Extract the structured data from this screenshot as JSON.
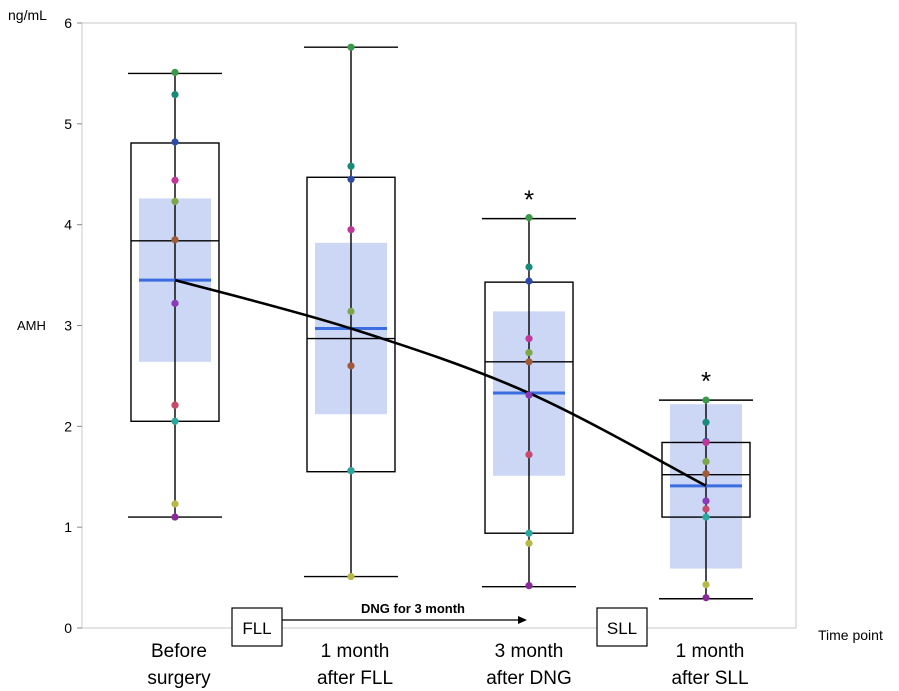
{
  "chart_data": {
    "type": "box",
    "unit_label": "ng/mL",
    "ylabel": "AMH",
    "xlabel": "Time point",
    "ylim": [
      0,
      6
    ],
    "y_ticks": [
      0,
      1,
      2,
      3,
      4,
      5,
      6
    ],
    "categories": [
      {
        "line1": "Before",
        "line2": "surgery"
      },
      {
        "line1": "1 month",
        "line2": "after FLL"
      },
      {
        "line1": "3 month",
        "line2": "after DNG"
      },
      {
        "line1": "1 month",
        "line2": "after SLL"
      }
    ],
    "boxes": [
      {
        "whisker_low": 1.1,
        "q1": 2.05,
        "median": 3.84,
        "q3": 4.81,
        "whisker_high": 5.5,
        "mean": 3.45,
        "ci_low": 2.64,
        "ci_high": 4.26,
        "significance": "",
        "points": [
          5.51,
          5.29,
          4.82,
          4.44,
          4.23,
          3.85,
          3.22,
          2.21,
          2.05,
          1.23,
          1.1
        ]
      },
      {
        "whisker_low": 0.51,
        "q1": 1.55,
        "median": 2.87,
        "q3": 4.47,
        "whisker_high": 5.76,
        "mean": 2.97,
        "ci_low": 2.12,
        "ci_high": 3.82,
        "significance": "",
        "points": [
          5.76,
          4.58,
          4.45,
          3.95,
          3.14,
          2.6,
          1.56,
          1.56,
          1.56,
          0.51
        ]
      },
      {
        "whisker_low": 0.41,
        "q1": 0.94,
        "median": 2.64,
        "q3": 3.43,
        "whisker_high": 4.06,
        "mean": 2.33,
        "ci_low": 1.51,
        "ci_high": 3.14,
        "significance": "*",
        "points": [
          4.07,
          3.58,
          3.44,
          2.87,
          2.73,
          2.64,
          2.31,
          1.72,
          0.94,
          0.84,
          0.42
        ]
      },
      {
        "whisker_low": 0.29,
        "q1": 1.1,
        "median": 1.52,
        "q3": 1.84,
        "whisker_high": 2.26,
        "mean": 1.41,
        "ci_low": 0.59,
        "ci_high": 2.22,
        "significance": "*",
        "points": [
          2.26,
          2.04,
          1.85,
          1.84,
          1.65,
          1.53,
          1.26,
          1.18,
          1.1,
          0.43,
          0.3
        ]
      }
    ],
    "point_colors": [
      "#3a9a4a",
      "#1a8a7a",
      "#2e4aa8",
      "#c0389a",
      "#7ca84a",
      "#a05a3a",
      "#8a3ab8",
      "#c84a6a",
      "#2aa8a0",
      "#b8b84a",
      "#8a2a9a"
    ],
    "trend_line": {
      "connects": "mean",
      "from": "before-surgery",
      "to": "after-sll"
    },
    "box_color": "#000000",
    "ci_color": "#ccd6f5",
    "mean_color": "#3a6ee0",
    "annotations": {
      "fll_label": "FLL",
      "sll_label": "SLL",
      "arrow_label": "DNG for 3 month"
    },
    "grid": false,
    "legend": "none"
  }
}
